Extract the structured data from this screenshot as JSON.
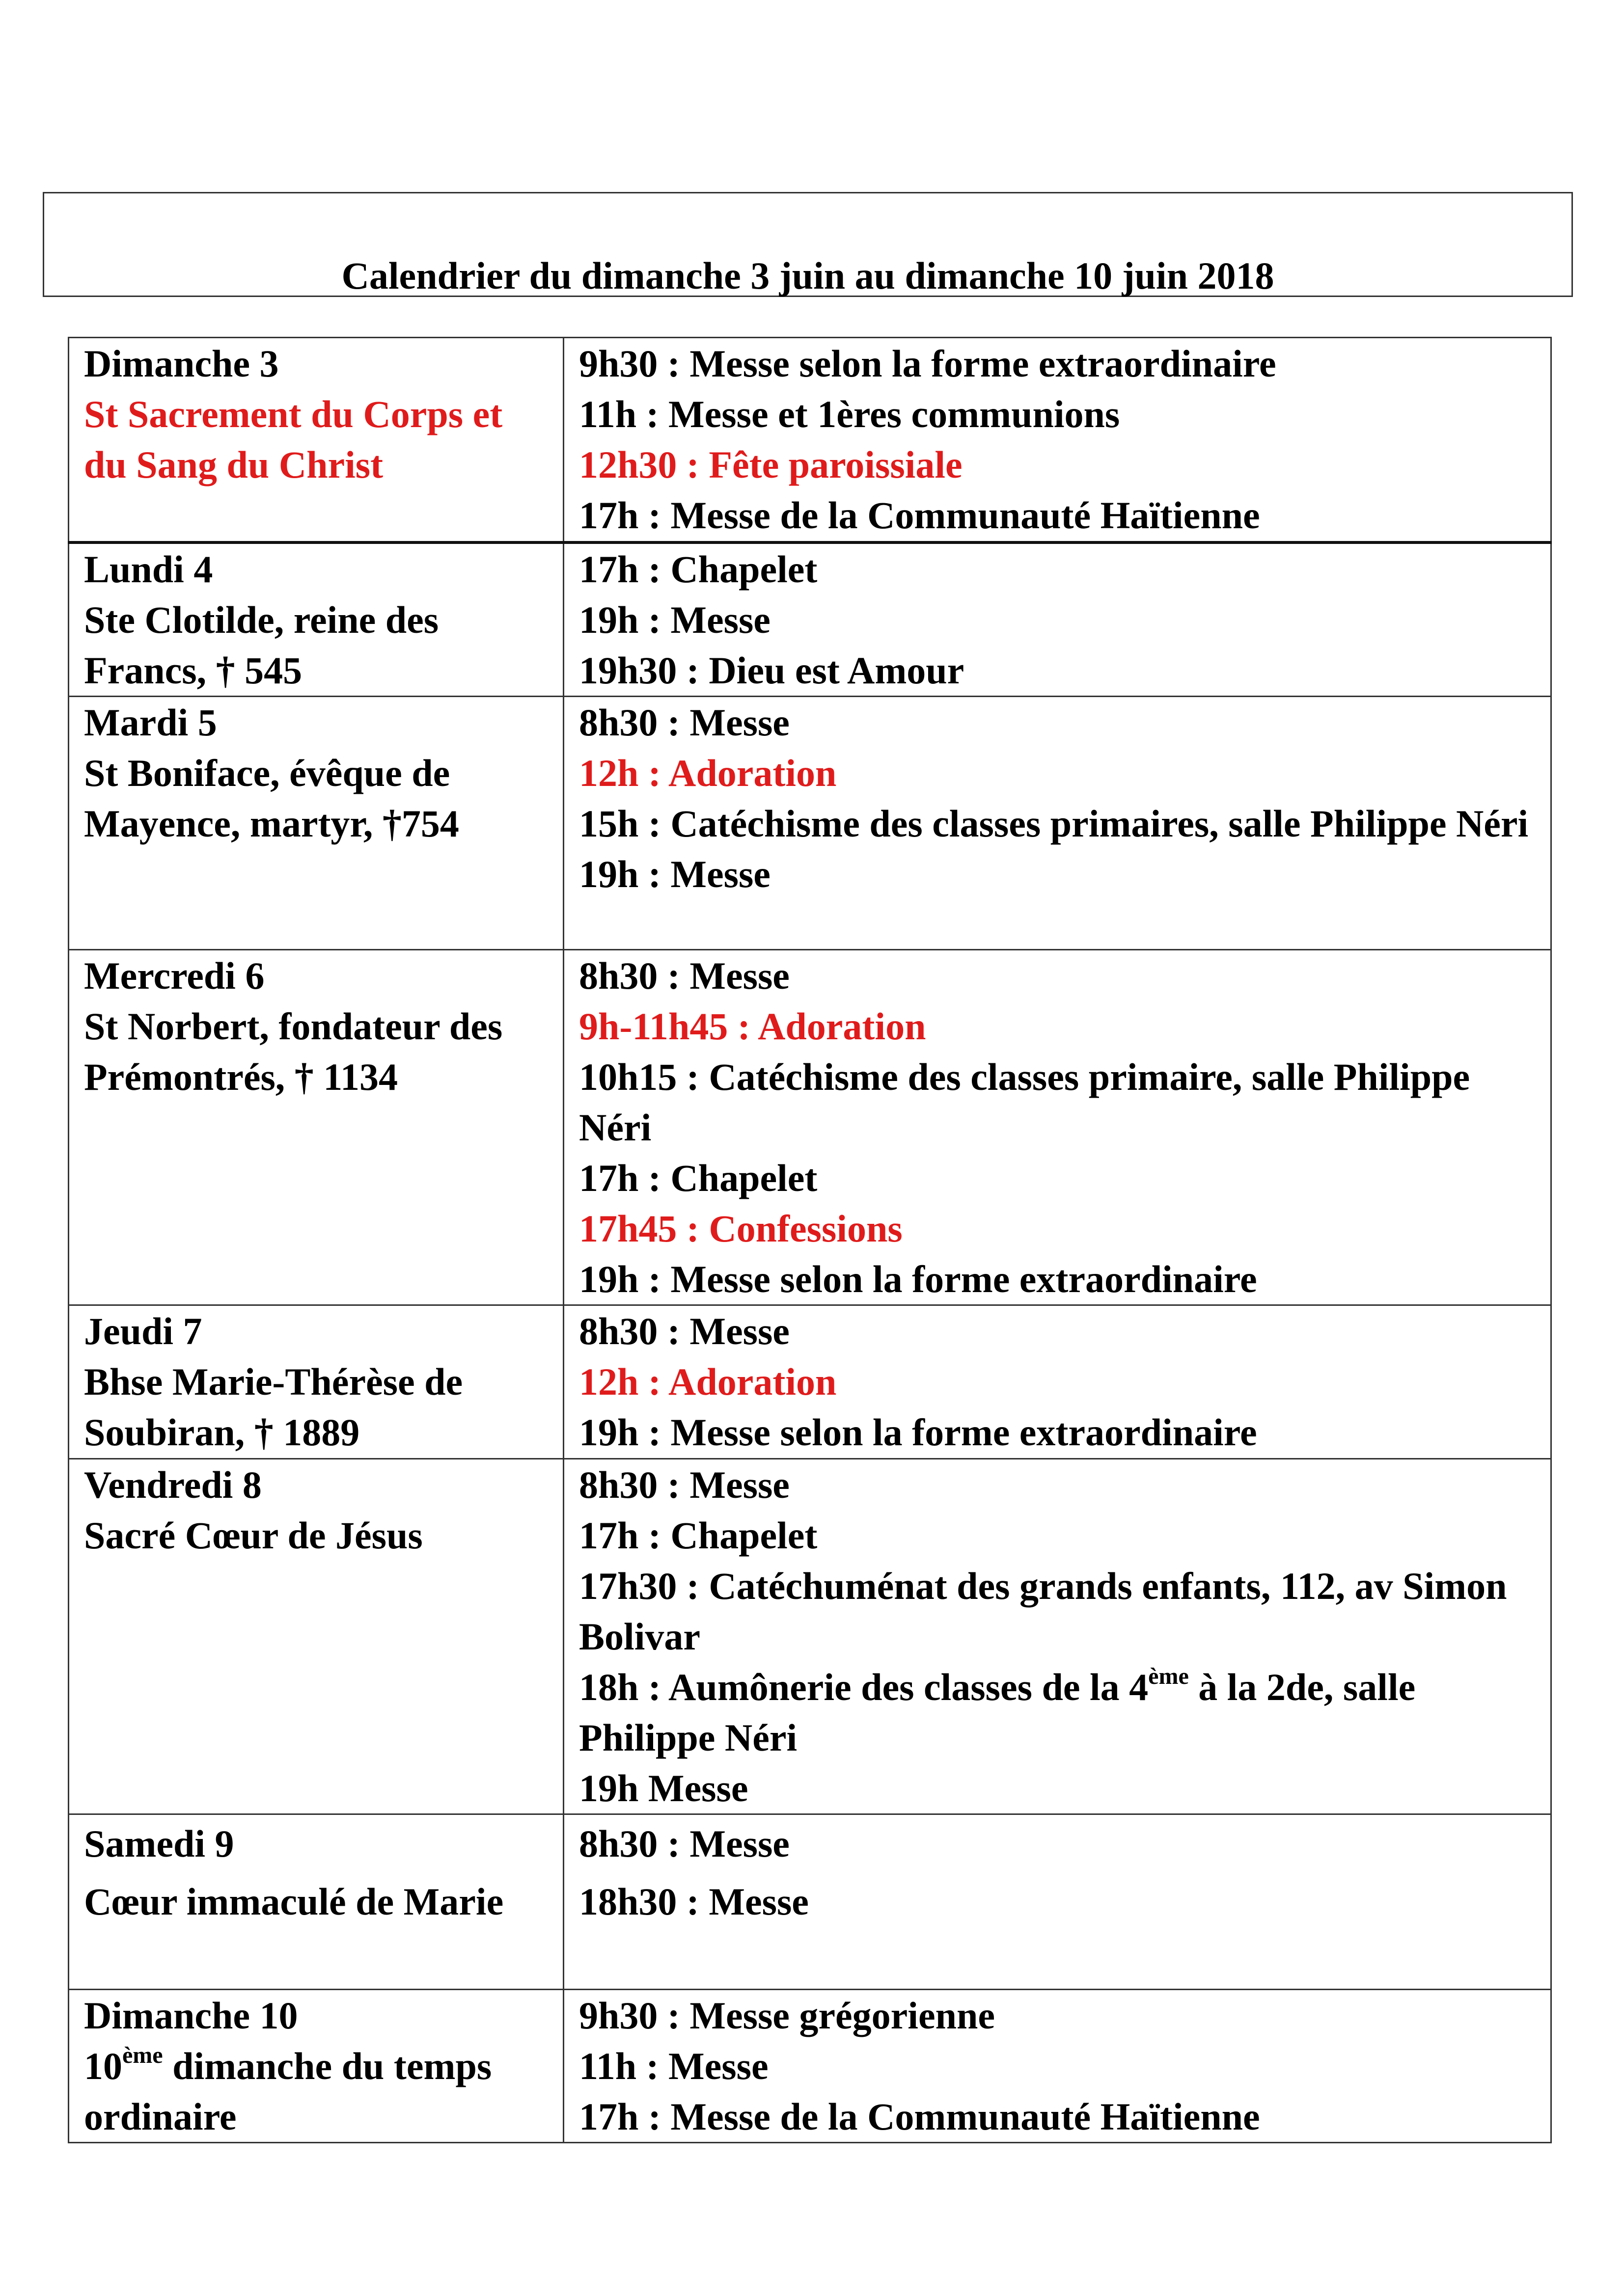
{
  "title": "Calendrier du dimanche 3 juin  au dimanche 10 juin 2018",
  "colors": {
    "text": "#000000",
    "highlight": "#e01b1b"
  },
  "rows": [
    {
      "day": "Dimanche 3",
      "feast": [
        {
          "text": "St Sacrement du Corps et du Sang du Christ",
          "red": true
        }
      ],
      "events": [
        {
          "text": "9h30 : Messe selon la forme extraordinaire"
        },
        {
          "text": "11h : Messe et 1ères communions"
        },
        {
          "text": "12h30 : Fête paroissiale",
          "red": true
        },
        {
          "text": "17h : Messe de la  Communauté Haïtienne"
        }
      ]
    },
    {
      "day": "Lundi 4",
      "feast": [
        {
          "text": "Ste Clotilde, reine des Francs, † 545"
        }
      ],
      "events": [
        {
          "text": "17h : Chapelet"
        },
        {
          "text": "19h : Messe"
        },
        {
          "text": "19h30 : Dieu est  Amour"
        }
      ]
    },
    {
      "day": "Mardi 5",
      "feast": [
        {
          "text": "St Boniface, évêque de Mayence, martyr, †754"
        }
      ],
      "events": [
        {
          "text": "8h30 : Messe"
        },
        {
          "text": "12h : Adoration",
          "red": true
        },
        {
          "text": "15h : Catéchisme des classes primaires, salle Philippe Néri"
        },
        {
          "text": "19h : Messe"
        }
      ]
    },
    {
      "day": "Mercredi 6",
      "feast": [
        {
          "text": "St Norbert, fondateur des Prémontrés, † 1134"
        }
      ],
      "events": [
        {
          "text": "8h30 : Messe"
        },
        {
          "text": "9h-11h45 : Adoration",
          "red": true
        },
        {
          "text": "10h15 : Catéchisme des classes primaire, salle Philippe Néri"
        },
        {
          "text": "17h : Chapelet"
        },
        {
          "text": "17h45 : Confessions",
          "red": true
        },
        {
          "text": "19h : Messe selon la forme extraordinaire"
        }
      ]
    },
    {
      "day": "Jeudi 7",
      "feast": [
        {
          "text": "Bhse Marie-Thérèse de Soubiran, † 1889"
        }
      ],
      "events": [
        {
          "text": "8h30 : Messe"
        },
        {
          "text": "12h : Adoration",
          "red": true
        },
        {
          "text": "19h : Messe selon la forme extraordinaire"
        }
      ]
    },
    {
      "day": "Vendredi 8",
      "feast": [
        {
          "text": "Sacré Cœur de Jésus"
        }
      ],
      "events": [
        {
          "text": "8h30 : Messe"
        },
        {
          "text": "17h : Chapelet"
        },
        {
          "text": "17h30 : Catéchuménat des grands enfants, 112, av Simon Bolivar"
        },
        {
          "text": "18h : Aumônerie des classes de la 4",
          "sup": "ème",
          "post": " à la 2de, salle Philippe Néri"
        },
        {
          "text": "19h Messe"
        }
      ]
    },
    {
      "day": "Samedi 9",
      "feast": [
        {
          "text": "Cœur immaculé de Marie"
        }
      ],
      "events": [
        {
          "text": "8h30 : Messe"
        },
        {
          "text": "18h30 : Messe"
        }
      ]
    },
    {
      "day": "Dimanche 10",
      "feast": [
        {
          "text": "10",
          "sup": "ème",
          "post": " dimanche du temps ordinaire"
        }
      ],
      "events": [
        {
          "text": "9h30 : Messe grégorienne"
        },
        {
          "text": "11h : Messe"
        },
        {
          "text": "17h : Messe de la Communauté Haïtienne"
        }
      ]
    }
  ]
}
